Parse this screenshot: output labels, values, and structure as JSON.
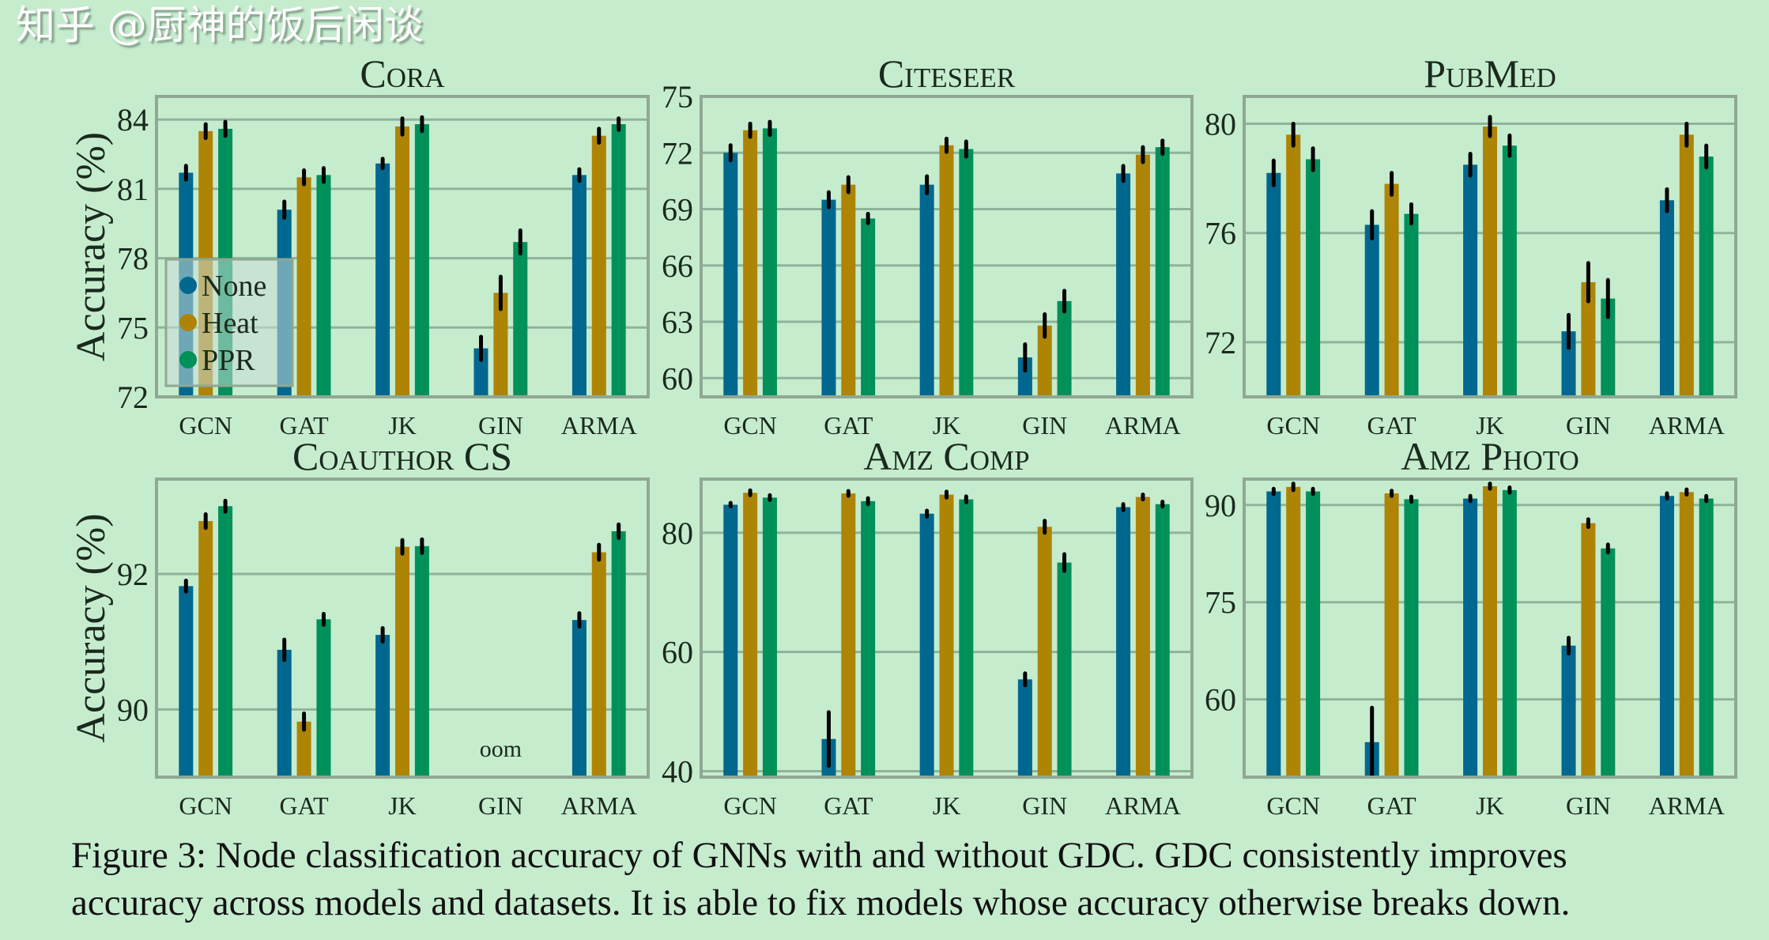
{
  "colors": {
    "background": "#c6ecce",
    "frame": "#8fa893",
    "grid": "#8fb39a",
    "None": "#00688f",
    "Heat": "#ae8405",
    "PPR": "#00905a",
    "error": "#000000"
  },
  "chart_data": [
    {
      "type": "bar",
      "title": "Cora",
      "ylabel": "Accuracy (%)",
      "categories": [
        "GCN",
        "GAT",
        "JK",
        "GIN",
        "ARMA"
      ],
      "ylim": [
        72,
        85
      ],
      "yticks": [
        72,
        75,
        78,
        81,
        84
      ],
      "grid": true,
      "legend": "bottom-left",
      "series": [
        {
          "name": "None",
          "values": [
            81.7,
            80.1,
            82.1,
            74.1,
            81.6
          ],
          "errors": [
            0.3,
            0.35,
            0.2,
            0.5,
            0.25
          ]
        },
        {
          "name": "Heat",
          "values": [
            83.5,
            81.5,
            83.7,
            76.5,
            83.3
          ],
          "errors": [
            0.3,
            0.3,
            0.35,
            0.7,
            0.3
          ]
        },
        {
          "name": "PPR",
          "values": [
            83.6,
            81.6,
            83.8,
            78.7,
            83.8
          ],
          "errors": [
            0.3,
            0.3,
            0.3,
            0.5,
            0.25
          ]
        }
      ]
    },
    {
      "type": "bar",
      "title": "Citeseer",
      "ylabel": "",
      "categories": [
        "GCN",
        "GAT",
        "JK",
        "GIN",
        "ARMA"
      ],
      "ylim": [
        59,
        75
      ],
      "yticks": [
        60,
        63,
        66,
        69,
        72,
        75
      ],
      "grid": true,
      "series": [
        {
          "name": "None",
          "values": [
            72.0,
            69.5,
            70.3,
            61.1,
            70.9
          ],
          "errors": [
            0.4,
            0.4,
            0.45,
            0.7,
            0.4
          ]
        },
        {
          "name": "Heat",
          "values": [
            73.2,
            70.3,
            72.4,
            62.8,
            71.9
          ],
          "errors": [
            0.35,
            0.4,
            0.35,
            0.6,
            0.4
          ]
        },
        {
          "name": "PPR",
          "values": [
            73.3,
            68.5,
            72.2,
            64.1,
            72.3
          ],
          "errors": [
            0.35,
            0.25,
            0.4,
            0.55,
            0.35
          ]
        }
      ]
    },
    {
      "type": "bar",
      "title": "PubMed",
      "ylabel": "",
      "categories": [
        "GCN",
        "GAT",
        "JK",
        "GIN",
        "ARMA"
      ],
      "ylim": [
        70,
        81
      ],
      "yticks": [
        72,
        76,
        80
      ],
      "grid": true,
      "series": [
        {
          "name": "None",
          "values": [
            78.2,
            76.3,
            78.5,
            72.4,
            77.2
          ],
          "errors": [
            0.45,
            0.5,
            0.4,
            0.6,
            0.4
          ]
        },
        {
          "name": "Heat",
          "values": [
            79.6,
            77.8,
            79.9,
            74.2,
            79.6
          ],
          "errors": [
            0.4,
            0.4,
            0.35,
            0.7,
            0.4
          ]
        },
        {
          "name": "PPR",
          "values": [
            78.7,
            76.7,
            79.2,
            73.6,
            78.8
          ],
          "errors": [
            0.4,
            0.35,
            0.37,
            0.68,
            0.4
          ]
        }
      ]
    },
    {
      "type": "bar",
      "title": "Coauthor CS",
      "ylabel": "Accuracy (%)",
      "categories": [
        "GCN",
        "GAT",
        "JK",
        "GIN",
        "ARMA"
      ],
      "ylim": [
        89,
        93.4
      ],
      "yticks": [
        90,
        92
      ],
      "grid": true,
      "annotations": [
        {
          "category": "GIN",
          "text": "oom"
        }
      ],
      "series": [
        {
          "name": "None",
          "values": [
            91.82,
            90.88,
            91.1,
            null,
            91.32
          ],
          "errors": [
            0.08,
            0.15,
            0.1,
            null,
            0.1
          ]
        },
        {
          "name": "Heat",
          "values": [
            92.78,
            89.82,
            92.4,
            null,
            92.32
          ],
          "errors": [
            0.1,
            0.12,
            0.1,
            null,
            0.11
          ]
        },
        {
          "name": "PPR",
          "values": [
            93.0,
            91.33,
            92.41,
            null,
            92.63
          ],
          "errors": [
            0.08,
            0.08,
            0.1,
            null,
            0.1
          ]
        }
      ]
    },
    {
      "type": "bar",
      "title": "Amz Comp",
      "ylabel": "",
      "categories": [
        "GCN",
        "GAT",
        "JK",
        "GIN",
        "ARMA"
      ],
      "ylim": [
        39,
        89
      ],
      "yticks": [
        40,
        60,
        80
      ],
      "grid": true,
      "series": [
        {
          "name": "None",
          "values": [
            84.7,
            45.4,
            83.2,
            55.4,
            84.3
          ],
          "errors": [
            0.3,
            4.5,
            0.5,
            1.0,
            0.5
          ]
        },
        {
          "name": "Heat",
          "values": [
            86.7,
            86.6,
            86.4,
            81.0,
            86.0
          ],
          "errors": [
            0.4,
            0.4,
            0.5,
            1.0,
            0.4
          ]
        },
        {
          "name": "PPR",
          "values": [
            85.9,
            85.3,
            85.6,
            75.0,
            84.8
          ],
          "errors": [
            0.4,
            0.5,
            0.5,
            1.4,
            0.4
          ]
        }
      ]
    },
    {
      "type": "bar",
      "title": "Amz Photo",
      "ylabel": "",
      "categories": [
        "GCN",
        "GAT",
        "JK",
        "GIN",
        "ARMA"
      ],
      "ylim": [
        48,
        94
      ],
      "yticks": [
        60,
        75,
        90
      ],
      "grid": true,
      "series": [
        {
          "name": "None",
          "values": [
            92.1,
            53.4,
            91.0,
            68.3,
            91.4
          ],
          "errors": [
            0.4,
            5.3,
            0.4,
            1.2,
            0.4
          ]
        },
        {
          "name": "Heat",
          "values": [
            92.8,
            91.8,
            92.9,
            87.2,
            92.0
          ],
          "errors": [
            0.5,
            0.4,
            0.4,
            0.6,
            0.4
          ]
        },
        {
          "name": "PPR",
          "values": [
            92.1,
            90.9,
            92.3,
            83.3,
            91.0
          ],
          "errors": [
            0.4,
            0.4,
            0.4,
            0.6,
            0.4
          ]
        }
      ]
    }
  ],
  "caption": {
    "line1": "Figure 3: Node classification accuracy of GNNs with and without GDC. GDC consistently improves",
    "line2": "accuracy across models and datasets. It is able to fix models whose accuracy otherwise breaks down."
  },
  "watermark": "知乎 @厨神的饭后闲谈"
}
